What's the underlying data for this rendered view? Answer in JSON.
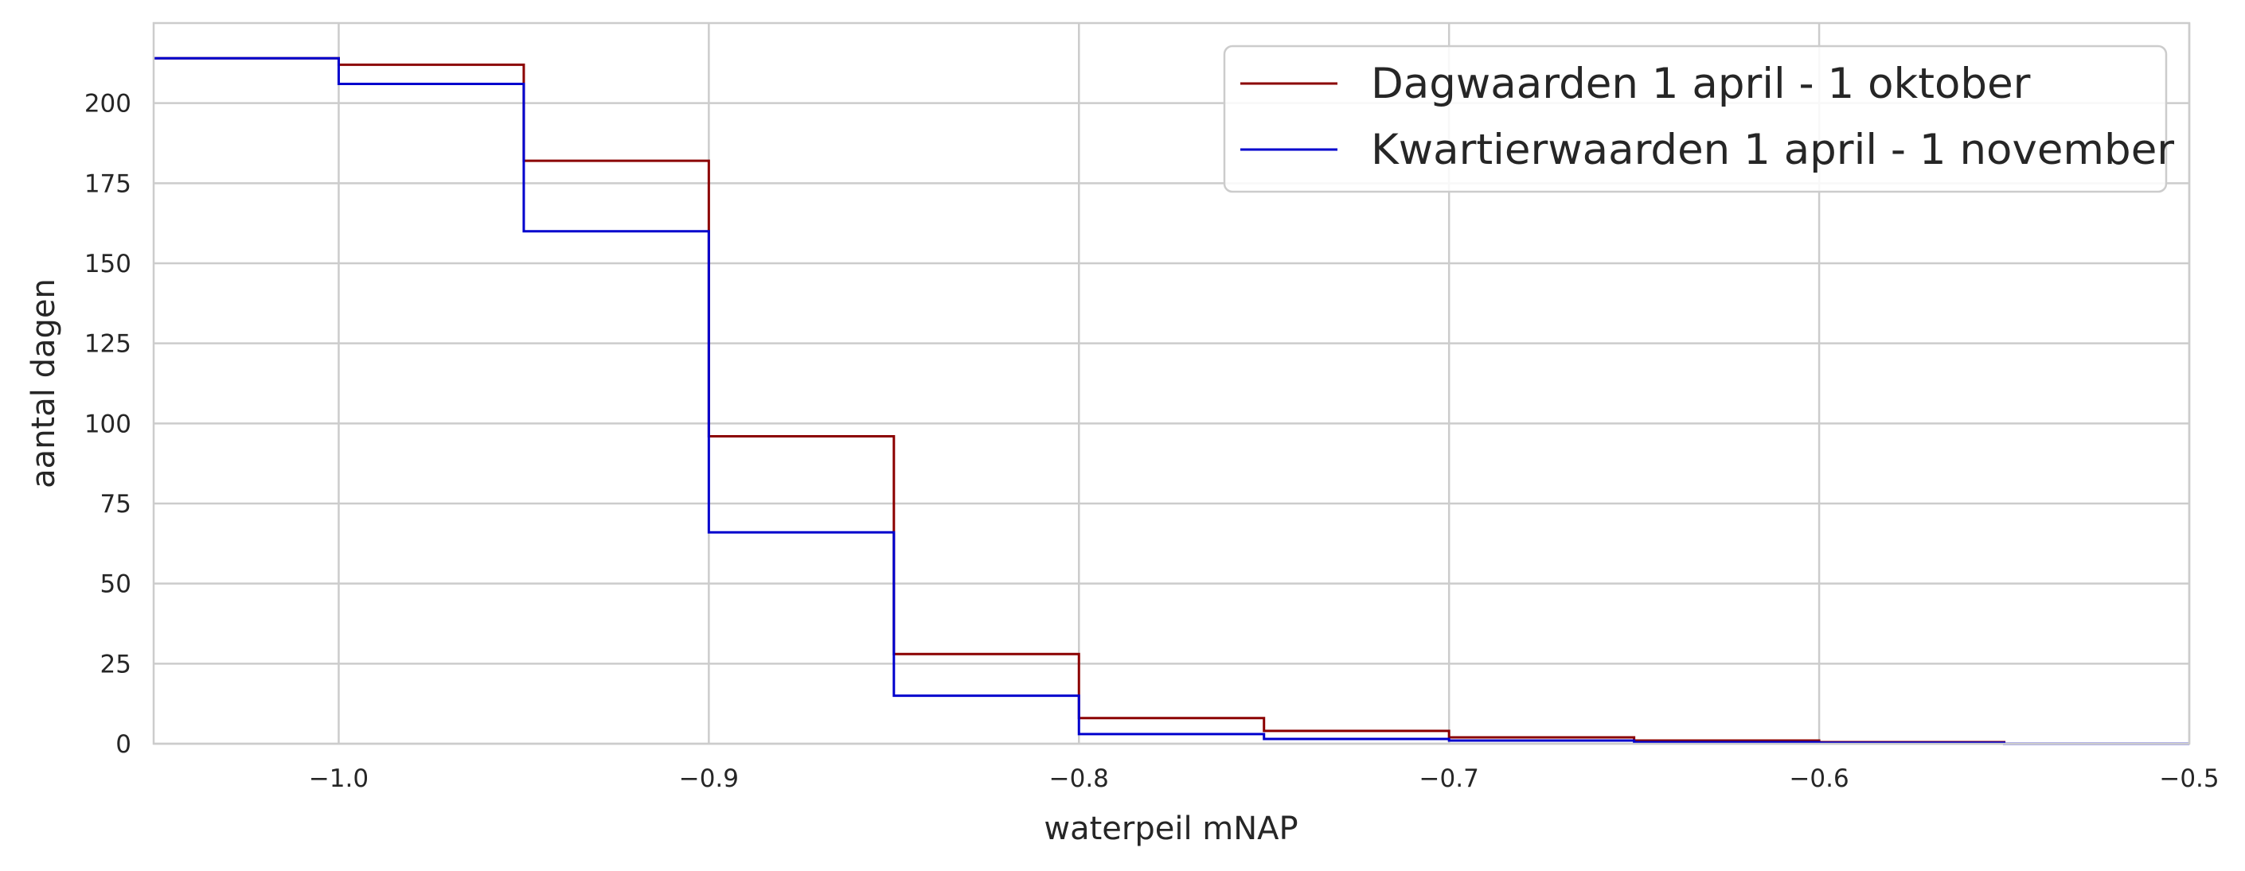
{
  "chart_data": {
    "type": "line",
    "step": "post",
    "xlabel": "waterpeil mNAP",
    "ylabel": "aantal dagen",
    "xlim": [
      -1.05,
      -0.5
    ],
    "ylim": [
      0,
      225
    ],
    "grid": true,
    "legend_position": "top-right",
    "x_ticks": [
      {
        "value": -1.0,
        "label": "−1.0"
      },
      {
        "value": -0.9,
        "label": "−0.9"
      },
      {
        "value": -0.8,
        "label": "−0.8"
      },
      {
        "value": -0.7,
        "label": "−0.7"
      },
      {
        "value": -0.6,
        "label": "−0.6"
      },
      {
        "value": -0.5,
        "label": "−0.5"
      }
    ],
    "y_ticks": [
      {
        "value": 0,
        "label": "0"
      },
      {
        "value": 25,
        "label": "25"
      },
      {
        "value": 50,
        "label": "50"
      },
      {
        "value": 75,
        "label": "75"
      },
      {
        "value": 100,
        "label": "100"
      },
      {
        "value": 125,
        "label": "125"
      },
      {
        "value": 150,
        "label": "150"
      },
      {
        "value": 175,
        "label": "175"
      },
      {
        "value": 200,
        "label": "200"
      }
    ],
    "series": [
      {
        "name": "Dagwaarden 1 april - 1 oktober",
        "color": "#8b0000",
        "x": [
          -1.05,
          -1.0,
          -0.95,
          -0.9,
          -0.85,
          -0.8,
          -0.75,
          -0.7,
          -0.65,
          -0.6,
          -0.55,
          -0.5
        ],
        "y": [
          214,
          212,
          182,
          96,
          28,
          8,
          4,
          2,
          1,
          0.5,
          0,
          0
        ]
      },
      {
        "name": "Kwartierwaarden 1 april - 1 november",
        "color": "#0000cd",
        "x": [
          -1.05,
          -1.0,
          -0.95,
          -0.9,
          -0.85,
          -0.8,
          -0.75,
          -0.7,
          -0.65,
          -0.6,
          -0.55,
          -0.5
        ],
        "y": [
          214,
          206,
          160,
          66,
          15,
          3,
          1.5,
          1,
          0.5,
          0.3,
          0,
          0
        ]
      }
    ]
  }
}
